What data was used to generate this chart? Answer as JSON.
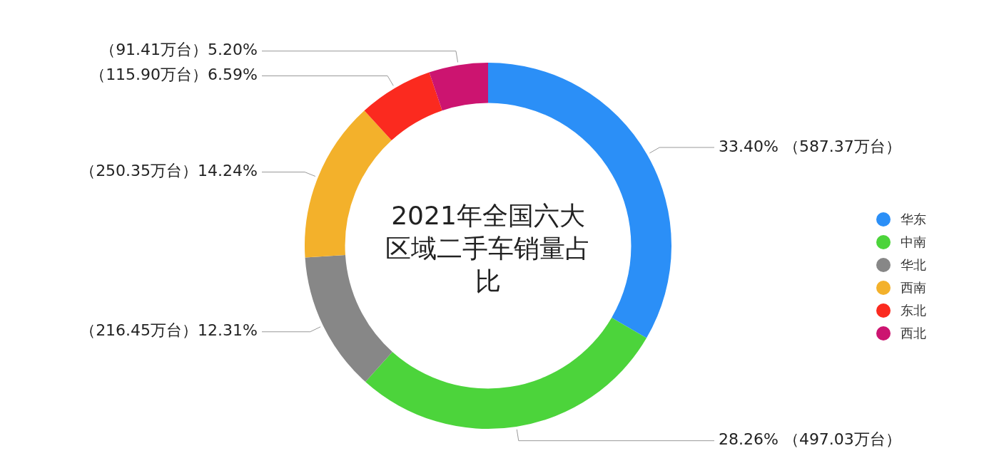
{
  "chart_data": {
    "type": "donut",
    "title": "2021年全国六大区域二手车销量占比",
    "categories": [
      "华东",
      "中南",
      "华北",
      "西南",
      "东北",
      "西北"
    ],
    "values": [
      587.37,
      497.03,
      216.45,
      250.35,
      115.9,
      91.41
    ],
    "colors": [
      "#2b8ff7",
      "#4cd43b",
      "#878787",
      "#f3b12b",
      "#fb2a1f",
      "#cc1470"
    ],
    "value_labels": [
      "33.40% （587.37万台）",
      "28.26% （497.03万台）",
      "（216.45万台）12.31%",
      "（250.35万台）14.24%",
      "（115.90万台）6.59%",
      "（91.41万台）5.20%"
    ],
    "legend": "right"
  }
}
